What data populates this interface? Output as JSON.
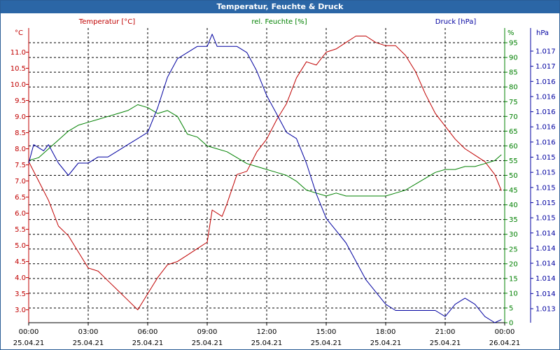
{
  "title": "Temperatur, Feuchte & Druck",
  "colors": {
    "temperature": "#c00000",
    "humidity": "#008000",
    "pressure": "#0000a0",
    "grid": "#000000",
    "axis": "#000000"
  },
  "chart_data": {
    "type": "line",
    "title": "Temperatur, Feuchte & Druck",
    "x": {
      "range": [
        "2021-04-25 00:00",
        "2021-04-26 00:00"
      ],
      "ticks": [
        {
          "time": "00:00",
          "date": "25.04.21"
        },
        {
          "time": "03:00",
          "date": "25.04.21"
        },
        {
          "time": "06:00",
          "date": "25.04.21"
        },
        {
          "time": "09:00",
          "date": "25.04.21"
        },
        {
          "time": "12:00",
          "date": "25.04.21"
        },
        {
          "time": "15:00",
          "date": "25.04.21"
        },
        {
          "time": "18:00",
          "date": "25.04.21"
        },
        {
          "time": "21:00",
          "date": "25.04.21"
        },
        {
          "time": "00:00",
          "date": "26.04.21"
        }
      ]
    },
    "axes": {
      "temperature": {
        "label": "Temperatur [°C]",
        "unit": "°C",
        "side": "left",
        "range": [
          2.6,
          11.75
        ],
        "ticks": [
          "3.0",
          "3.5",
          "4.0",
          "4.5",
          "5.0",
          "5.5",
          "6.0",
          "6.5",
          "7.0",
          "7.5",
          "8.0",
          "8.5",
          "9.0",
          "9.5",
          "10.0",
          "10.5",
          "11.0"
        ]
      },
      "humidity": {
        "label": "rel. Feuchte [%]",
        "unit": "%",
        "side": "right",
        "range": [
          0,
          100
        ],
        "ticks": [
          "0",
          "5",
          "10",
          "15",
          "20",
          "25",
          "30",
          "35",
          "40",
          "45",
          "50",
          "55",
          "60",
          "65",
          "70",
          "75",
          "80",
          "85",
          "90",
          "95"
        ]
      },
      "pressure": {
        "label": "Druck [hPa]",
        "unit": "hPa",
        "side": "right",
        "range": [
          1012.9,
          1017.7
        ],
        "ticks": [
          "1.013",
          "1.014",
          "1.014",
          "1.014",
          "1.014",
          "1.014",
          "1.015",
          "1.015",
          "1.015",
          "1.015",
          "1.015",
          "1.016",
          "1.016",
          "1.016",
          "1.016",
          "1.016",
          "1.017",
          "1.017"
        ]
      }
    },
    "grid": true,
    "series": [
      {
        "name": "Temperatur [°C]",
        "axis": "temperature",
        "points": [
          [
            "00:00",
            7.6
          ],
          [
            "00:30",
            7.0
          ],
          [
            "01:00",
            6.4
          ],
          [
            "01:30",
            5.6
          ],
          [
            "02:00",
            5.3
          ],
          [
            "02:30",
            4.8
          ],
          [
            "03:00",
            4.3
          ],
          [
            "03:30",
            4.2
          ],
          [
            "04:00",
            3.9
          ],
          [
            "04:30",
            3.6
          ],
          [
            "05:00",
            3.3
          ],
          [
            "05:30",
            3.0
          ],
          [
            "06:00",
            3.5
          ],
          [
            "06:30",
            4.0
          ],
          [
            "07:00",
            4.4
          ],
          [
            "07:30",
            4.5
          ],
          [
            "08:00",
            4.7
          ],
          [
            "08:30",
            4.9
          ],
          [
            "09:00",
            5.1
          ],
          [
            "09:15",
            6.1
          ],
          [
            "09:45",
            5.9
          ],
          [
            "10:00",
            6.3
          ],
          [
            "10:30",
            7.2
          ],
          [
            "11:00",
            7.3
          ],
          [
            "11:30",
            7.9
          ],
          [
            "12:00",
            8.3
          ],
          [
            "12:30",
            8.9
          ],
          [
            "13:00",
            9.4
          ],
          [
            "13:30",
            10.2
          ],
          [
            "14:00",
            10.7
          ],
          [
            "14:30",
            10.6
          ],
          [
            "15:00",
            11.0
          ],
          [
            "15:30",
            11.1
          ],
          [
            "16:00",
            11.3
          ],
          [
            "16:30",
            11.5
          ],
          [
            "17:00",
            11.5
          ],
          [
            "17:30",
            11.3
          ],
          [
            "18:00",
            11.2
          ],
          [
            "18:30",
            11.2
          ],
          [
            "19:00",
            10.9
          ],
          [
            "19:30",
            10.4
          ],
          [
            "20:00",
            9.7
          ],
          [
            "20:30",
            9.1
          ],
          [
            "21:00",
            8.7
          ],
          [
            "21:30",
            8.3
          ],
          [
            "22:00",
            8.0
          ],
          [
            "22:30",
            7.8
          ],
          [
            "23:00",
            7.6
          ],
          [
            "23:30",
            7.2
          ],
          [
            "23:50",
            6.7
          ]
        ]
      },
      {
        "name": "rel. Feuchte [%]",
        "axis": "humidity",
        "points": [
          [
            "00:00",
            55
          ],
          [
            "00:30",
            56
          ],
          [
            "01:00",
            59
          ],
          [
            "01:30",
            62
          ],
          [
            "02:00",
            65
          ],
          [
            "02:30",
            67
          ],
          [
            "03:00",
            68
          ],
          [
            "03:30",
            69
          ],
          [
            "04:00",
            70
          ],
          [
            "04:30",
            71
          ],
          [
            "05:00",
            72
          ],
          [
            "05:30",
            74
          ],
          [
            "06:00",
            73
          ],
          [
            "06:30",
            71
          ],
          [
            "07:00",
            72
          ],
          [
            "07:30",
            70
          ],
          [
            "08:00",
            64
          ],
          [
            "08:30",
            63
          ],
          [
            "09:00",
            60
          ],
          [
            "09:30",
            59
          ],
          [
            "10:00",
            58
          ],
          [
            "10:30",
            56
          ],
          [
            "11:00",
            54
          ],
          [
            "11:30",
            53
          ],
          [
            "12:00",
            52
          ],
          [
            "12:30",
            51
          ],
          [
            "13:00",
            50
          ],
          [
            "13:30",
            48
          ],
          [
            "14:00",
            45
          ],
          [
            "14:30",
            44
          ],
          [
            "15:00",
            43
          ],
          [
            "15:30",
            44
          ],
          [
            "16:00",
            43
          ],
          [
            "16:30",
            43
          ],
          [
            "17:00",
            43
          ],
          [
            "17:30",
            43
          ],
          [
            "18:00",
            43
          ],
          [
            "18:30",
            44
          ],
          [
            "19:00",
            45
          ],
          [
            "19:30",
            47
          ],
          [
            "20:00",
            49
          ],
          [
            "20:30",
            51
          ],
          [
            "21:00",
            52
          ],
          [
            "21:30",
            52
          ],
          [
            "22:00",
            53
          ],
          [
            "22:30",
            53
          ],
          [
            "23:00",
            54
          ],
          [
            "23:30",
            55
          ],
          [
            "23:50",
            57
          ]
        ]
      },
      {
        "name": "Druck [hPa]",
        "axis": "pressure",
        "points": [
          [
            "00:00",
            1015.5
          ],
          [
            "00:15",
            1015.8
          ],
          [
            "00:45",
            1015.7
          ],
          [
            "01:00",
            1015.8
          ],
          [
            "01:30",
            1015.5
          ],
          [
            "02:00",
            1015.3
          ],
          [
            "02:30",
            1015.5
          ],
          [
            "03:00",
            1015.5
          ],
          [
            "03:30",
            1015.6
          ],
          [
            "04:00",
            1015.6
          ],
          [
            "04:30",
            1015.7
          ],
          [
            "05:00",
            1015.8
          ],
          [
            "05:30",
            1015.9
          ],
          [
            "06:00",
            1016.0
          ],
          [
            "06:30",
            1016.4
          ],
          [
            "07:00",
            1016.9
          ],
          [
            "07:30",
            1017.2
          ],
          [
            "08:00",
            1017.3
          ],
          [
            "08:30",
            1017.4
          ],
          [
            "09:00",
            1017.4
          ],
          [
            "09:15",
            1017.6
          ],
          [
            "09:30",
            1017.4
          ],
          [
            "10:00",
            1017.4
          ],
          [
            "10:30",
            1017.4
          ],
          [
            "11:00",
            1017.3
          ],
          [
            "11:30",
            1017.0
          ],
          [
            "12:00",
            1016.6
          ],
          [
            "12:30",
            1016.3
          ],
          [
            "13:00",
            1016.0
          ],
          [
            "13:30",
            1015.9
          ],
          [
            "14:00",
            1015.5
          ],
          [
            "14:30",
            1015.0
          ],
          [
            "15:00",
            1014.6
          ],
          [
            "15:30",
            1014.4
          ],
          [
            "16:00",
            1014.2
          ],
          [
            "16:30",
            1013.9
          ],
          [
            "17:00",
            1013.6
          ],
          [
            "17:30",
            1013.4
          ],
          [
            "18:00",
            1013.2
          ],
          [
            "18:30",
            1013.1
          ],
          [
            "19:00",
            1013.1
          ],
          [
            "19:30",
            1013.1
          ],
          [
            "20:00",
            1013.1
          ],
          [
            "20:30",
            1013.1
          ],
          [
            "21:00",
            1013.0
          ],
          [
            "21:30",
            1013.2
          ],
          [
            "22:00",
            1013.3
          ],
          [
            "22:30",
            1013.2
          ],
          [
            "23:00",
            1013.0
          ],
          [
            "23:30",
            1012.9
          ],
          [
            "23:50",
            1012.95
          ]
        ]
      }
    ]
  }
}
